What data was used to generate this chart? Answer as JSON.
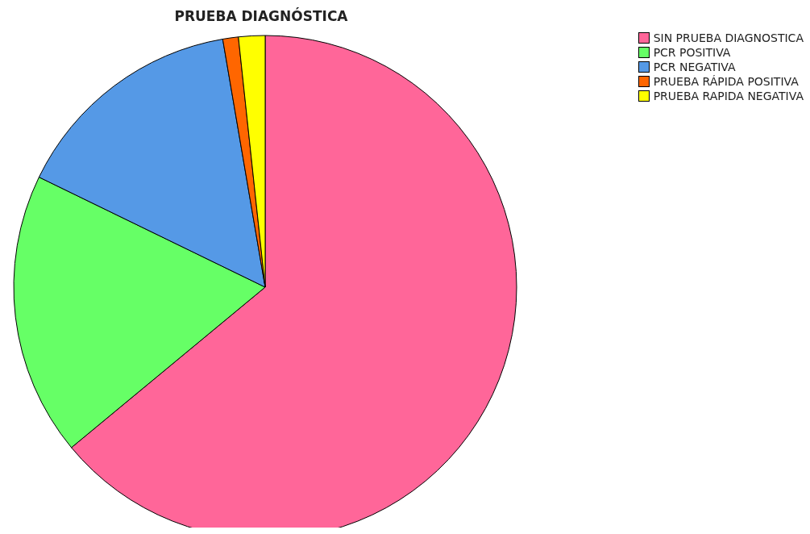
{
  "chart_data": {
    "type": "pie",
    "title": "PRUEBA DIAGNÓSTICA",
    "categories": [
      "SIN PRUEBA DIAGNOSTICA",
      "PCR POSITIVA",
      "PCR NEGATIVA",
      "PRUEBA RÁPIDA POSITIVA",
      "PRUEBA RAPIDA NEGATIVA"
    ],
    "values": [
      64.0,
      18.2,
      15.1,
      1.0,
      1.7
    ],
    "colors": [
      "#ff6699",
      "#66ff66",
      "#5599e6",
      "#ff6600",
      "#ffff00"
    ],
    "legend": "top right"
  }
}
